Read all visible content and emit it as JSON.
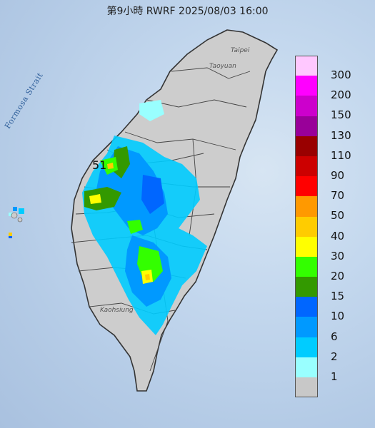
{
  "title": "第9小時  RWRF 2025/08/03 16:00",
  "strait_label": "Formosa Strait",
  "cities": {
    "taipei": "Taipei",
    "taoyuan": "Taoyuan",
    "kaohsiung": "Kaohsiung"
  },
  "max_value_label": "51",
  "legend": {
    "levels": [
      {
        "label": "300",
        "color": "#ffc8ff"
      },
      {
        "label": "200",
        "color": "#ff00ff"
      },
      {
        "label": "150",
        "color": "#cc00cc"
      },
      {
        "label": "130",
        "color": "#990099"
      },
      {
        "label": "110",
        "color": "#990000"
      },
      {
        "label": "90",
        "color": "#cc0000"
      },
      {
        "label": "70",
        "color": "#ff0000"
      },
      {
        "label": "50",
        "color": "#ff9900"
      },
      {
        "label": "40",
        "color": "#ffcc00"
      },
      {
        "label": "30",
        "color": "#ffff00"
      },
      {
        "label": "20",
        "color": "#33ff00"
      },
      {
        "label": "15",
        "color": "#339900"
      },
      {
        "label": "10",
        "color": "#0066ff"
      },
      {
        "label": "6",
        "color": "#0099ff"
      },
      {
        "label": "2",
        "color": "#00ccff"
      },
      {
        "label": "1",
        "color": "#99ffff"
      },
      {
        "label": "",
        "color": "#c8c8c8"
      }
    ]
  },
  "colors": {
    "sea": "#c4d8ee",
    "land": "#cfcfcf",
    "border": "#333333"
  }
}
